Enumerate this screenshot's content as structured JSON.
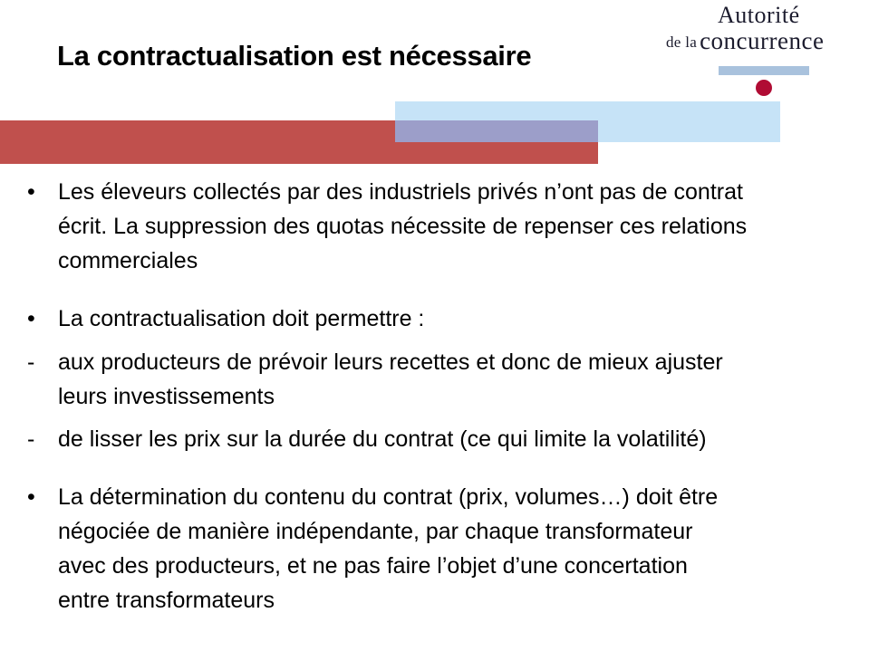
{
  "slide": {
    "title": "La contractualisation est nécessaire"
  },
  "logo": {
    "line1": "Autorité",
    "line2_small": "de la",
    "line2_large": "concurrence"
  },
  "content": {
    "items": [
      {
        "marker": "•",
        "text": "Les éleveurs collectés par des industriels privés n’ont pas de contrat\nécrit. La suppression des quotas nécessite de repenser ces relations\ncommerciales"
      },
      {
        "marker": "•",
        "text": "La contractualisation doit permettre :"
      },
      {
        "marker": "-",
        "text": "aux producteurs de prévoir leurs recettes et donc de mieux ajuster\nleurs investissements"
      },
      {
        "marker": "-",
        "text": "de lisser les prix sur la durée du contrat (ce qui limite la volatilité)"
      },
      {
        "marker": "•",
        "text": "La détermination du contenu du contrat (prix, volumes…) doit être\nnégociée de manière indépendante, par chaque transformateur\navec des producteurs, et ne pas faire l’objet d’une concertation\nentre transformateurs"
      }
    ]
  },
  "colors": {
    "accent_red": "#c0504d",
    "accent_light_blue": "#c6e3f7",
    "overlap_slate": "#9c9ec9",
    "logo_bar_blue": "#a9c2dd",
    "logo_dot_red": "#b00c34",
    "title_text": "#000000",
    "body_text": "#000000",
    "logo_text": "#1c1c2e"
  }
}
